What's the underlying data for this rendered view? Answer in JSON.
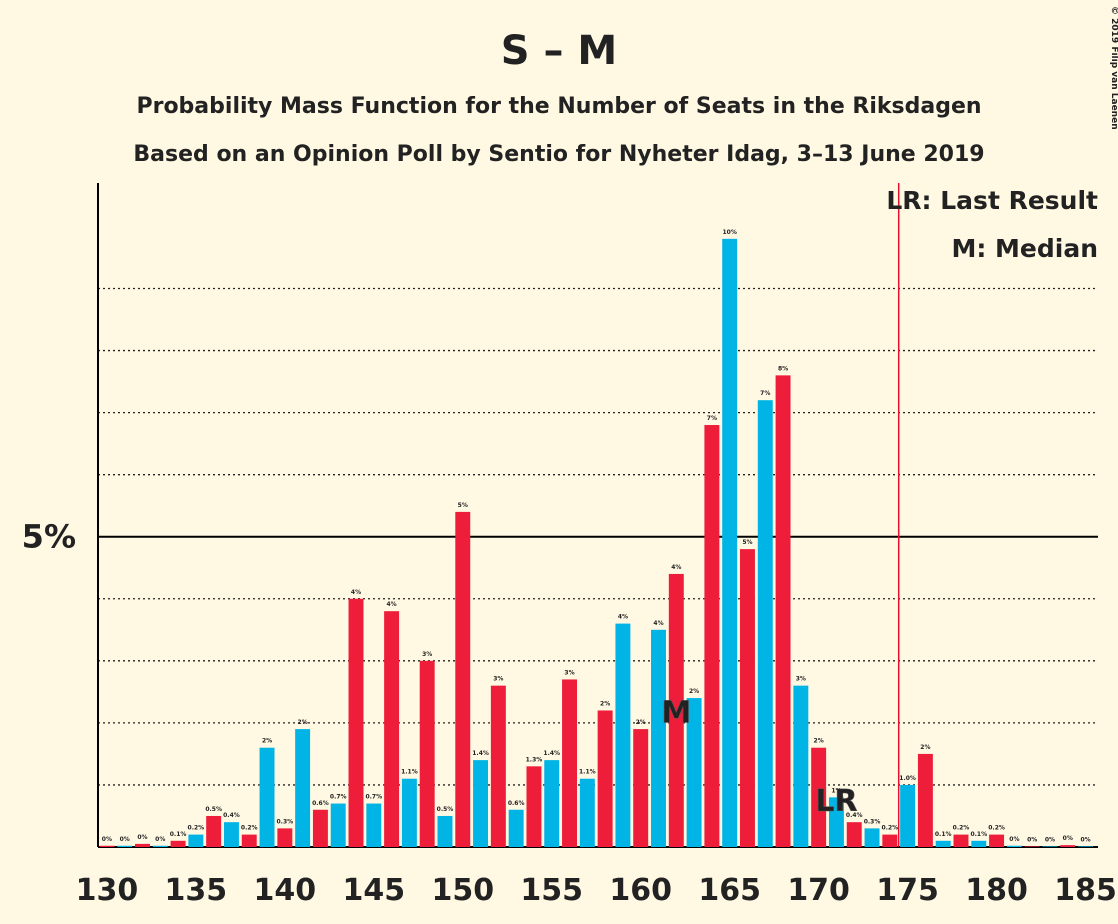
{
  "chart_data": {
    "type": "bar",
    "title": "S – M",
    "subtitle": "Probability Mass Function for the Number of Seats in the Riksdagen",
    "subtitle2": "Based on an Opinion Poll by Sentio for Nyheter Idag, 3–13 June 2019",
    "credit": "© 2019 Filip van Laenen",
    "x": [
      130,
      131,
      132,
      133,
      134,
      135,
      136,
      137,
      138,
      139,
      140,
      141,
      142,
      143,
      144,
      145,
      146,
      147,
      148,
      149,
      150,
      151,
      152,
      153,
      154,
      155,
      156,
      157,
      158,
      159,
      160,
      161,
      162,
      163,
      164,
      165,
      166,
      167,
      168,
      169,
      170,
      171,
      172,
      173,
      174,
      175,
      176,
      177,
      178,
      179,
      180,
      181,
      182,
      183,
      184,
      185
    ],
    "values": [
      0.02,
      0.02,
      0.05,
      0.02,
      0.1,
      0.2,
      0.5,
      0.4,
      0.2,
      1.6,
      0.3,
      1.9,
      0.6,
      0.7,
      4.0,
      0.7,
      3.8,
      1.1,
      3.0,
      0.5,
      5.4,
      1.4,
      2.6,
      0.6,
      1.3,
      1.4,
      2.7,
      1.1,
      2.2,
      3.6,
      1.9,
      3.5,
      4.4,
      2.4,
      6.8,
      9.8,
      4.8,
      7.2,
      7.6,
      2.6,
      1.6,
      0.8,
      0.4,
      0.3,
      0.2,
      1.0,
      1.5,
      0.1,
      0.2,
      0.1,
      0.2,
      0.02,
      0.01,
      0.01,
      0.03,
      0.01
    ],
    "value_labels": [
      "0%",
      "0%",
      "0%",
      "0%",
      "0.1%",
      "0.2%",
      "0.5%",
      "0.4%",
      "0.2%",
      "2%",
      "0.3%",
      "2%",
      "0.6%",
      "0.7%",
      "4%",
      "0.7%",
      "4%",
      "1.1%",
      "3%",
      "0.5%",
      "5%",
      "1.4%",
      "3%",
      "0.6%",
      "1.3%",
      "1.4%",
      "3%",
      "1.1%",
      "2%",
      "4%",
      "2%",
      "4%",
      "4%",
      "2%",
      "7%",
      "10%",
      "5%",
      "7%",
      "8%",
      "3%",
      "2%",
      "1%",
      "0.4%",
      "0.3%",
      "0.2%",
      "1.0%",
      "2%",
      "0.1%",
      "0.2%",
      "0.1%",
      "0.2%",
      "0%",
      "0%",
      "0%",
      "0%",
      "0%"
    ],
    "colors": [
      "#ee1d3a",
      "#00b5e6"
    ],
    "xlim": [
      129.5,
      185.7
    ],
    "xticks": [
      130,
      135,
      140,
      145,
      150,
      155,
      160,
      165,
      170,
      175,
      180,
      185
    ],
    "ylim": [
      0,
      10.7
    ],
    "yticks": [
      {
        "value": 5,
        "label": "5%"
      }
    ],
    "minor_grid": [
      1,
      2,
      3,
      4,
      6,
      7,
      8,
      9
    ],
    "vline": 174.5,
    "annotations": [
      {
        "label": "M",
        "x": 162
      },
      {
        "label": "LR",
        "x": 171
      }
    ],
    "legend": [
      "LR: Last Result",
      "M: Median"
    ]
  }
}
